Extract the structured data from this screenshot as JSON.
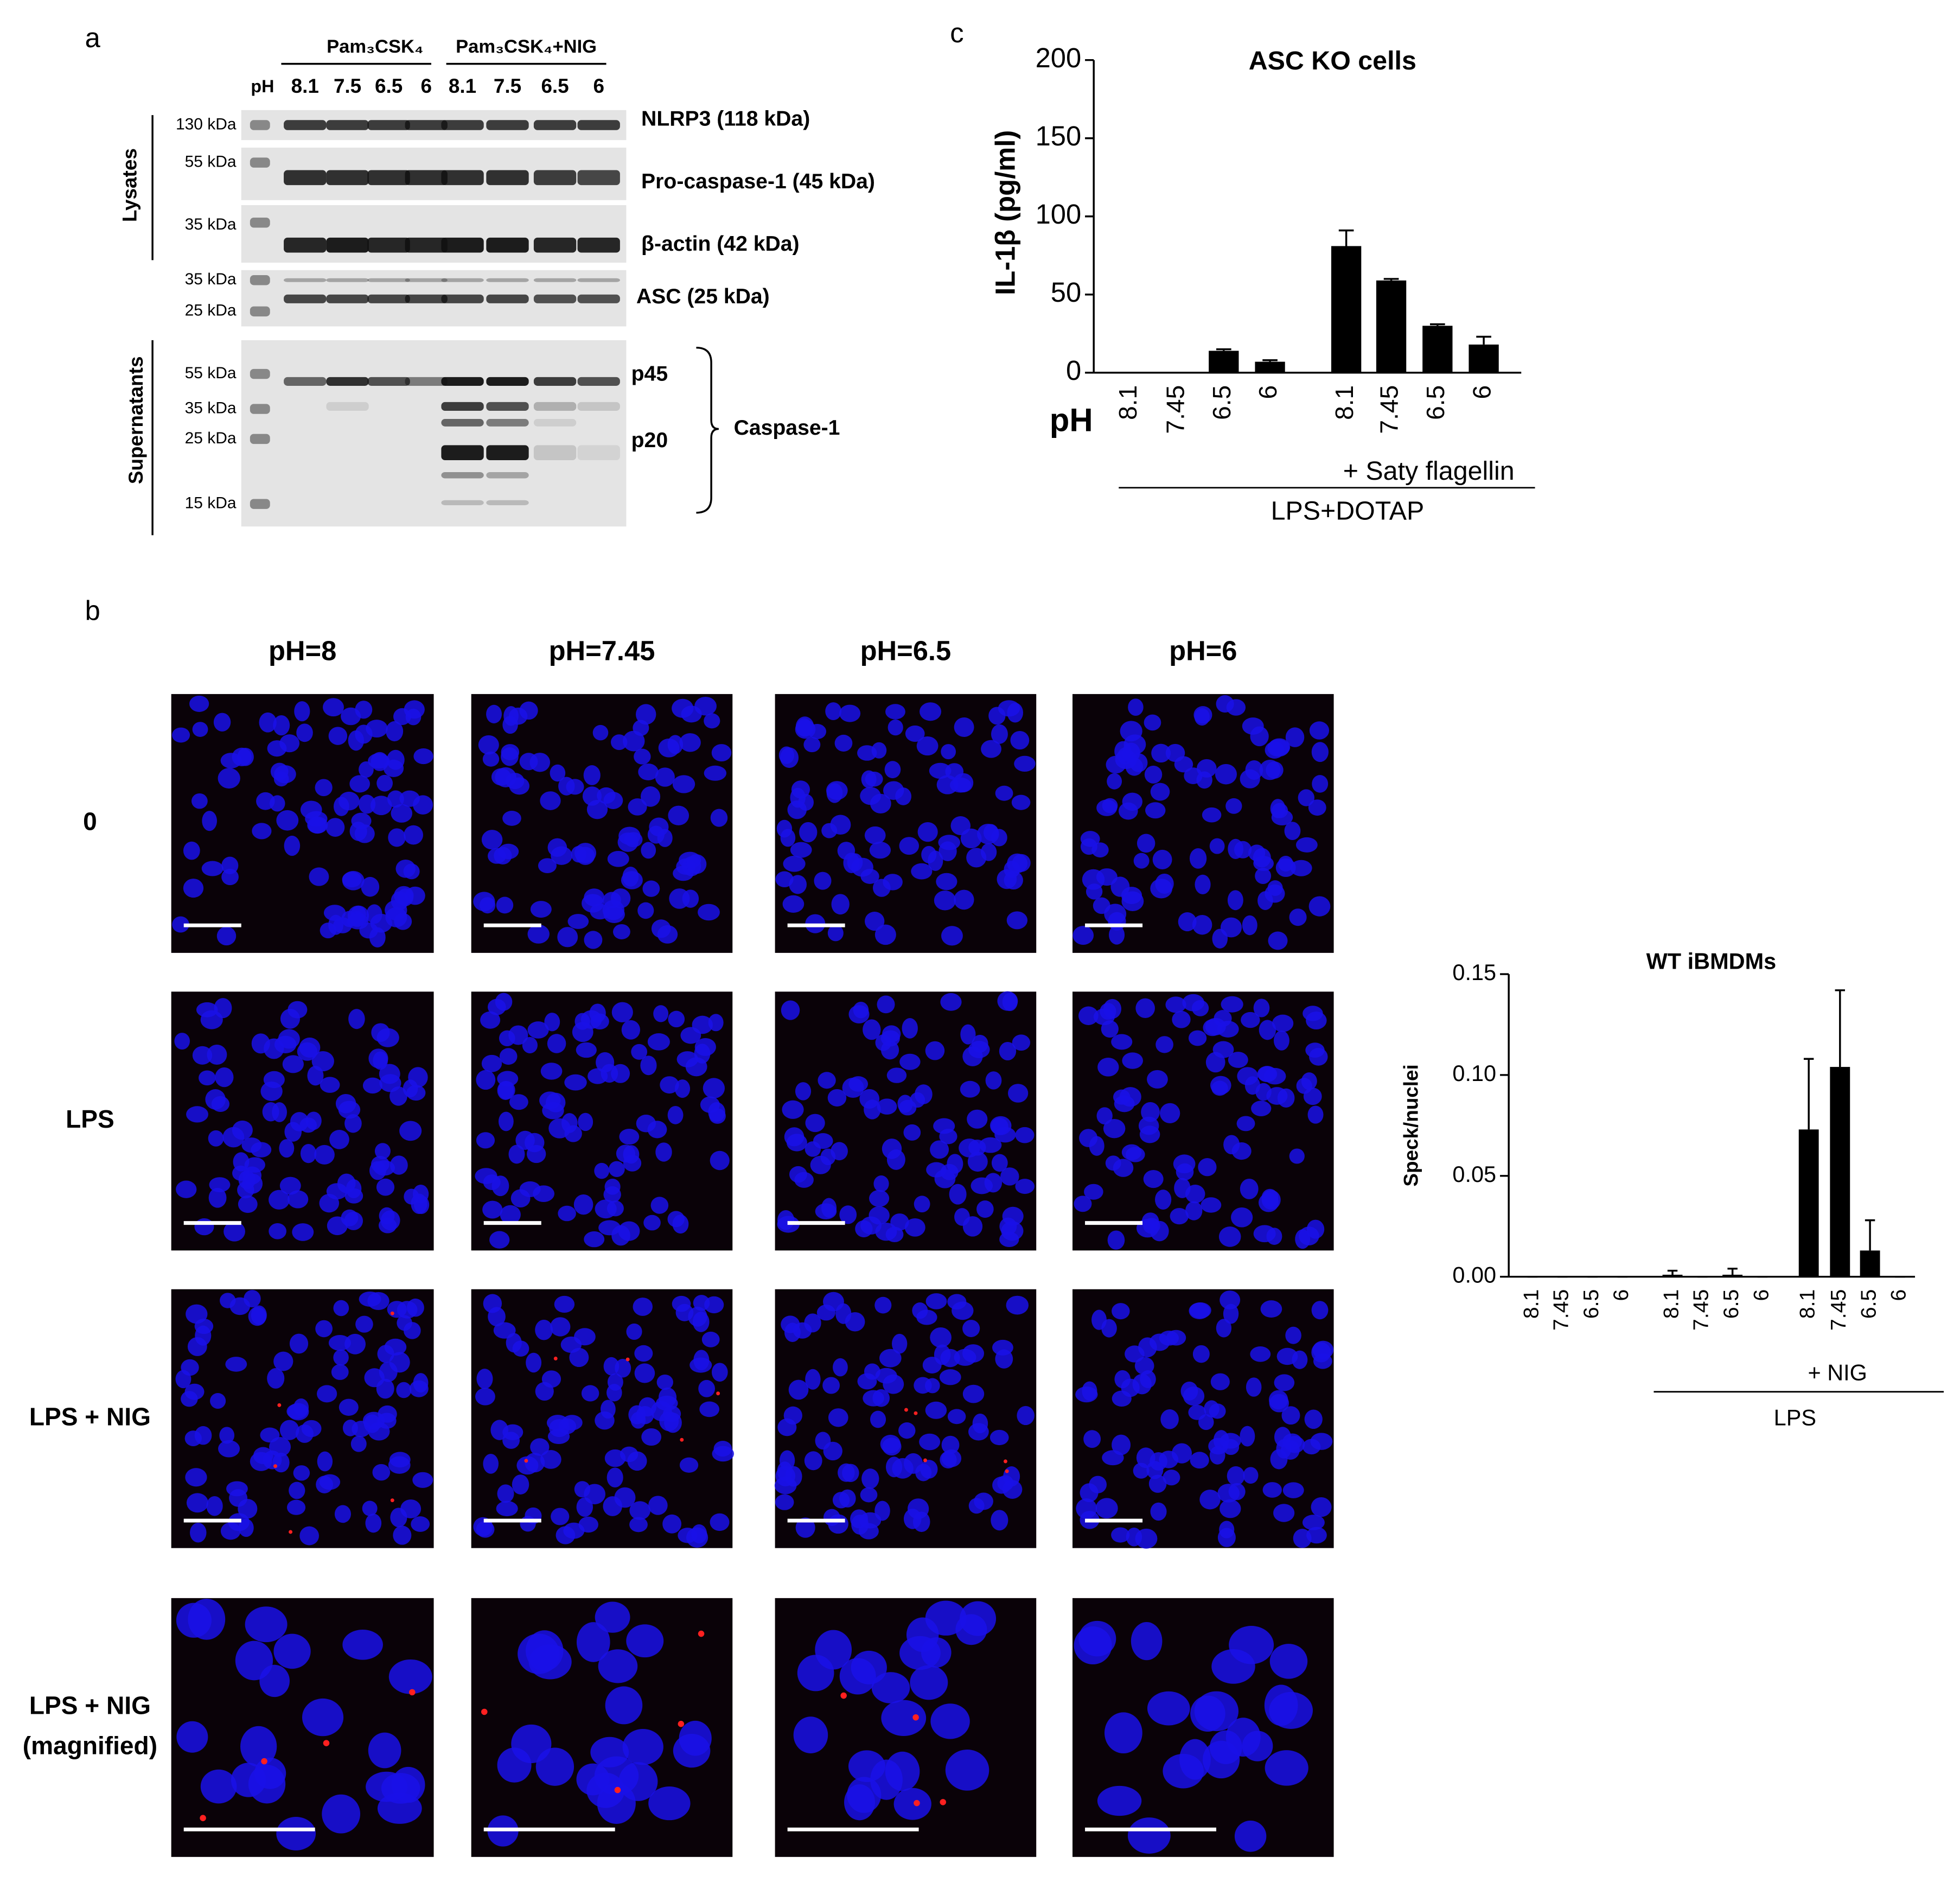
{
  "panel_labels": [
    "a",
    "b",
    "c"
  ],
  "blot": {
    "groups": [
      "Pam₃CSK₄",
      "Pam₃CSK₄+NIG"
    ],
    "ph_label": "pH",
    "lanes": [
      "8.1",
      "7.5",
      "6.5",
      "6",
      "8.1",
      "7.5",
      "6.5",
      "6"
    ],
    "sections": [
      "Lysates",
      "Supernatants"
    ],
    "markers": [
      "130 kDa",
      "55 kDa",
      "35 kDa",
      "35 kDa",
      "25 kDa",
      "55 kDa",
      "35 kDa",
      "25 kDa",
      "15 kDa"
    ],
    "bands": [
      "NLRP3 (118 kDa)",
      "Pro-caspase-1 (45 kDa)",
      "β-actin (42 kDa)",
      "ASC (25 kDa)",
      "p45",
      "p20"
    ],
    "bracket_label": "Caspase-1"
  },
  "microscopy": {
    "columns": [
      "pH=8",
      "pH=7.45",
      "pH=6.5",
      "pH=6"
    ],
    "rows": [
      [
        "0"
      ],
      [
        "LPS"
      ],
      [
        "LPS + NIG"
      ],
      [
        "LPS + NIG",
        "(magnified)"
      ]
    ]
  },
  "chart_data": [
    {
      "type": "bar",
      "title": "ASC KO cells",
      "ylabel": "IL-1β (pg/ml)",
      "xaxis_label": "pH",
      "categories": [
        "8.1",
        "7.45",
        "6.5",
        "6",
        "8.1",
        "7.45",
        "6.5",
        "6"
      ],
      "values": [
        0,
        0,
        14,
        7,
        81,
        59,
        30,
        18
      ],
      "errors": [
        0,
        0,
        1,
        1,
        10,
        1,
        1,
        5
      ],
      "annotation": "+ Saty flagellin",
      "xlabel": "LPS+DOTAP",
      "color": "#000000",
      "ylim": [
        0,
        200
      ],
      "yticks": [
        0,
        50,
        100,
        150,
        200
      ]
    },
    {
      "type": "bar",
      "title": "WT iBMDMs",
      "ylabel": "Speck/nuclei",
      "categories": [
        "8.1",
        "7.45",
        "6.5",
        "6",
        "8.1",
        "7.45",
        "6.5",
        "6",
        "8.1",
        "7.45",
        "6.5",
        "6"
      ],
      "values": [
        0,
        0,
        0,
        0,
        0.001,
        0,
        0.001,
        0,
        0.073,
        0.104,
        0.013,
        0
      ],
      "errors": [
        0,
        0,
        0,
        0,
        0.002,
        0,
        0.003,
        0,
        0.035,
        0.038,
        0.015,
        0
      ],
      "annotation": "+ NIG",
      "xlabel": "LPS",
      "color": "#000000",
      "ylim": [
        0,
        0.15
      ],
      "yticks": [
        {
          "value": 0,
          "label": "0.00"
        },
        {
          "value": 0.05,
          "label": "0.05"
        },
        {
          "value": 0.1,
          "label": "0.10"
        },
        {
          "value": 0.15,
          "label": "0.15"
        }
      ]
    }
  ]
}
